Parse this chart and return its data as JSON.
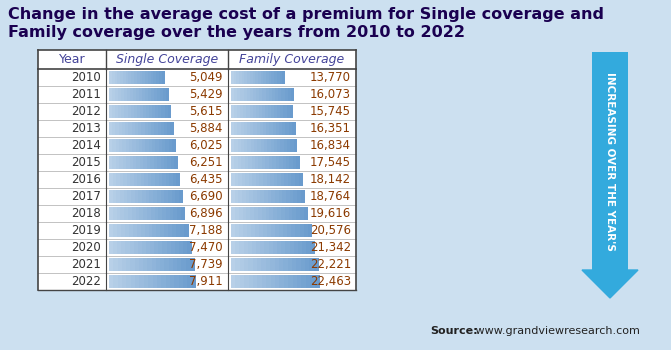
{
  "title_line1": "Change in the average cost of a premium for Single coverage and",
  "title_line2": "Family coverage over the years from 2010 to 2022",
  "title_color": "#1a0050",
  "background_color": "#cce0f0",
  "years": [
    2010,
    2011,
    2012,
    2013,
    2014,
    2015,
    2016,
    2017,
    2018,
    2019,
    2020,
    2021,
    2022
  ],
  "single_coverage": [
    5049,
    5429,
    5615,
    5884,
    6025,
    6251,
    6435,
    6690,
    6896,
    7188,
    7470,
    7739,
    7911
  ],
  "family_coverage": [
    13770,
    16073,
    15745,
    16351,
    16834,
    17545,
    18142,
    18764,
    19616,
    20576,
    21342,
    22221,
    22463
  ],
  "col_headers": [
    "Year",
    "Single Coverage",
    "Family Coverage"
  ],
  "cell_bar_color_start": "#b8d0e8",
  "cell_bar_color_end": "#6699cc",
  "arrow_color": "#33aadd",
  "arrow_text": "INCREASING OVER THE YEAR'S",
  "source_bold": "Source:",
  "source_normal": " www.grandviewresearch.com",
  "table_border_color": "#444444",
  "row_sep_color": "#aaaaaa",
  "number_color": "#8B3A00",
  "year_color": "#333333",
  "header_text_color": "#444499"
}
